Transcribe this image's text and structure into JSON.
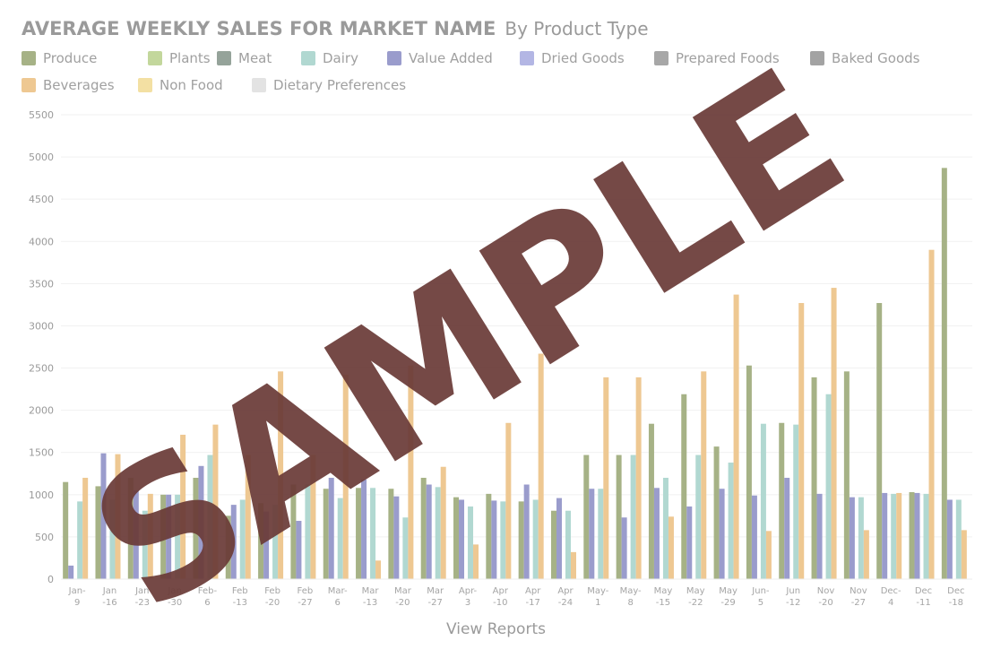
{
  "title": {
    "main": "AVERAGE WEEKLY SALES FOR MARKET NAME",
    "sub": "By Product Type"
  },
  "legend": [
    {
      "name": "Produce",
      "color": "#a6b286"
    },
    {
      "name": "Plants",
      "color": "#c3d79c"
    },
    {
      "name": "Meat",
      "color": "#95a39a"
    },
    {
      "name": "Dairy",
      "color": "#b1d8d1"
    },
    {
      "name": "Value Added",
      "color": "#9a9ccc"
    },
    {
      "name": "Dried Goods",
      "color": "#b3b6e4"
    },
    {
      "name": "Prepared Foods",
      "color": "#a7a7a7"
    },
    {
      "name": "Baked Goods",
      "color": "#a3a3a3"
    },
    {
      "name": "Beverages",
      "color": "#eec892"
    },
    {
      "name": "Non Food",
      "color": "#f3e0a3"
    },
    {
      "name": "Dietary Preferences",
      "color": "#e3e3e3"
    }
  ],
  "chart_data": {
    "type": "bar",
    "ylim": [
      0,
      5500
    ],
    "yticks": [
      0,
      500,
      1000,
      1500,
      2000,
      2500,
      3000,
      3500,
      4000,
      4500,
      5000,
      5500
    ],
    "grid": true,
    "categories": [
      [
        "Jan-",
        "9"
      ],
      [
        "Jan",
        "-16"
      ],
      [
        "Jan",
        "-23"
      ],
      [
        "Jan",
        "-30"
      ],
      [
        "Feb-",
        "6"
      ],
      [
        "Feb",
        "-13"
      ],
      [
        "Feb",
        "-20"
      ],
      [
        "Feb",
        "-27"
      ],
      [
        "Mar-",
        "6"
      ],
      [
        "Mar",
        "-13"
      ],
      [
        "Mar",
        "-20"
      ],
      [
        "Mar",
        "-27"
      ],
      [
        "Apr-",
        "3"
      ],
      [
        "Apr",
        "-10"
      ],
      [
        "Apr",
        "-17"
      ],
      [
        "Apr",
        "-24"
      ],
      [
        "May-",
        "1"
      ],
      [
        "May-",
        "8"
      ],
      [
        "May",
        "-15"
      ],
      [
        "May",
        "-22"
      ],
      [
        "May",
        "-29"
      ],
      [
        "Jun-",
        "5"
      ],
      [
        "Jun",
        "-12"
      ],
      [
        "Nov",
        "-20"
      ],
      [
        "Nov",
        "-27"
      ],
      [
        "Dec-",
        "4"
      ],
      [
        "Dec",
        "-11"
      ],
      [
        "Dec",
        "-18"
      ]
    ],
    "series": [
      {
        "name": "Produce",
        "color": "#a6b286",
        "values": [
          1150,
          1100,
          1200,
          1000,
          1200,
          750,
          900,
          1120,
          1070,
          1080,
          1070,
          1200,
          970,
          1010,
          920,
          810,
          1470,
          1470,
          1840,
          2190,
          1570,
          2530,
          1850,
          2390,
          2460,
          3270,
          1030,
          4870
        ]
      },
      {
        "name": "Value Added",
        "color": "#9a9ccc",
        "values": [
          160,
          1490,
          1050,
          1000,
          1340,
          880,
          800,
          690,
          1200,
          1180,
          980,
          1120,
          940,
          930,
          1120,
          960,
          1070,
          730,
          1080,
          860,
          1070,
          990,
          1200,
          1010,
          970,
          1020,
          1020,
          940
        ]
      },
      {
        "name": "Dried Goods",
        "color": "#b3b6e4",
        "values": [
          0,
          0,
          0,
          0,
          0,
          0,
          0,
          0,
          0,
          0,
          0,
          0,
          0,
          0,
          0,
          0,
          0,
          0,
          0,
          0,
          0,
          0,
          0,
          0,
          0,
          0,
          0,
          0
        ]
      },
      {
        "name": "Dairy",
        "color": "#b1d8d1",
        "values": [
          920,
          940,
          810,
          1000,
          1470,
          940,
          880,
          1120,
          960,
          1080,
          730,
          1090,
          860,
          920,
          940,
          810,
          1070,
          1470,
          1200,
          1470,
          1380,
          1840,
          1830,
          2190,
          970,
          1010,
          1010,
          940
        ]
      },
      {
        "name": "Beverages",
        "color": "#eec892",
        "values": [
          1200,
          1480,
          1010,
          1710,
          1830,
          1470,
          2460,
          1470,
          2420,
          220,
          2530,
          1330,
          410,
          1850,
          2670,
          320,
          2390,
          2390,
          740,
          2460,
          3370,
          570,
          3270,
          3450,
          580,
          1020,
          3900,
          580
        ]
      }
    ]
  },
  "view_reports": "View Reports",
  "watermark": "SAMPLE"
}
